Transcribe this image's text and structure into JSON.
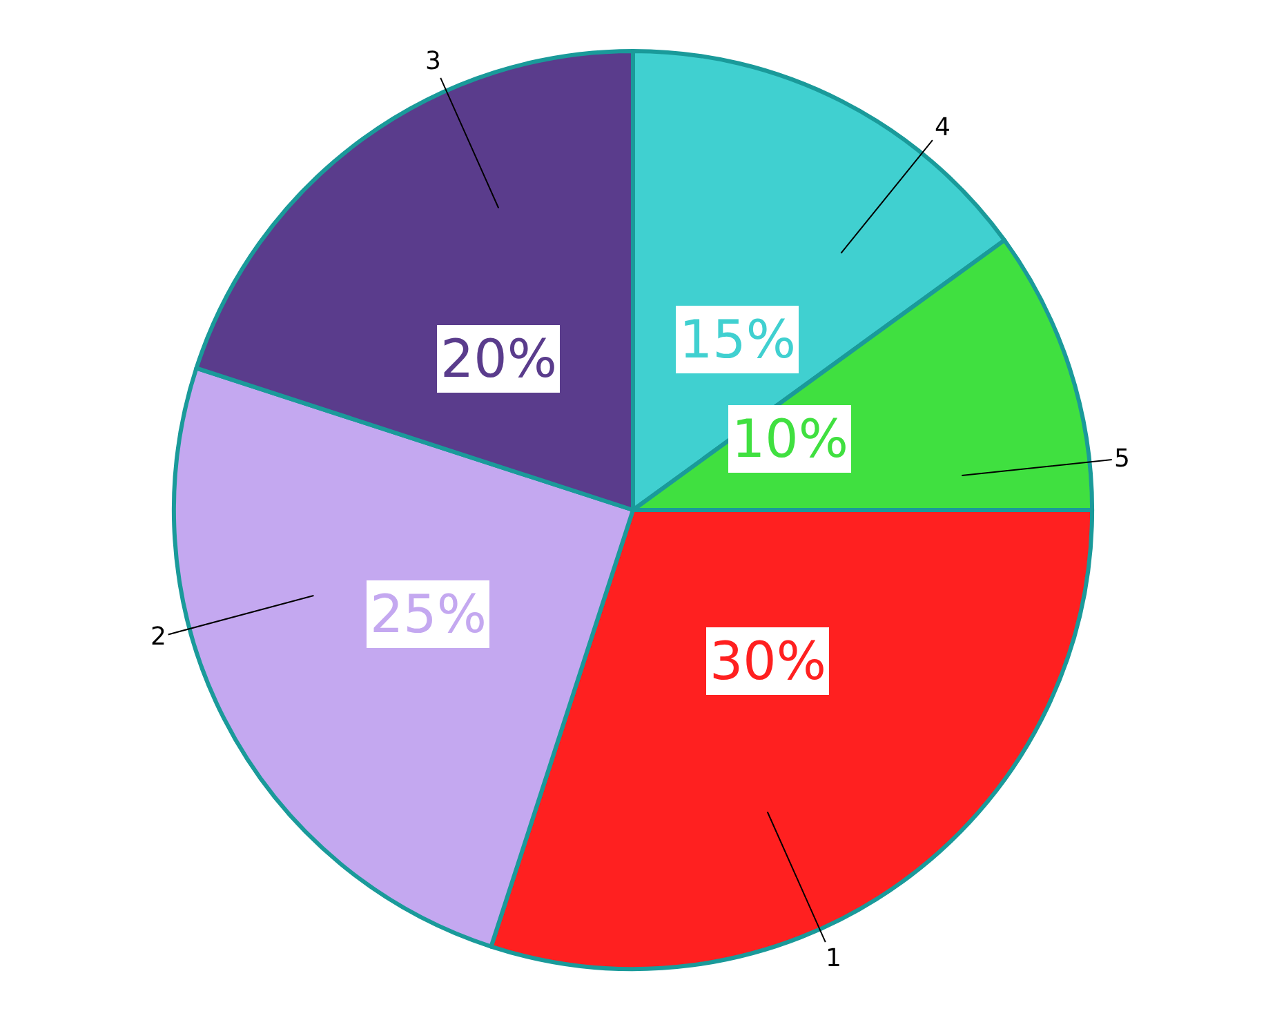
{
  "chart_data": {
    "type": "pie",
    "categories": [
      "1",
      "2",
      "3",
      "4",
      "5"
    ],
    "values": [
      30,
      25,
      20,
      15,
      10
    ],
    "colors": [
      "#ff2020",
      "#c4a8f0",
      "#5a3c8c",
      "#40d0d0",
      "#40e040"
    ],
    "value_labels": [
      "30%",
      "25%",
      "20%",
      "15%",
      "10%"
    ],
    "legend": false
  }
}
